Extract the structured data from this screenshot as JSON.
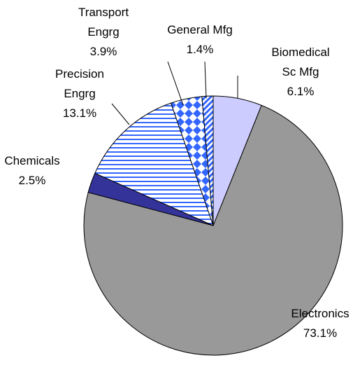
{
  "chart_data": {
    "type": "pie",
    "categories": [
      "Biomedical Sc Mfg",
      "Electronics",
      "Chemicals",
      "Precision Engrg",
      "Transport Engrg",
      "General Mfg"
    ],
    "values": [
      6.1,
      73.1,
      2.5,
      13.1,
      3.9,
      1.4
    ],
    "value_labels": [
      "6.1%",
      "73.1%",
      "2.5%",
      "13.1%",
      "3.9%",
      "1.4%"
    ],
    "colors": [
      "#ccccff",
      "#999999",
      "#333399",
      "#3366ff",
      "#3366ff",
      "#3366ff"
    ],
    "patterns": [
      null,
      null,
      null,
      "horizontal-lines",
      "diamonds",
      "diagonal-lines"
    ]
  }
}
